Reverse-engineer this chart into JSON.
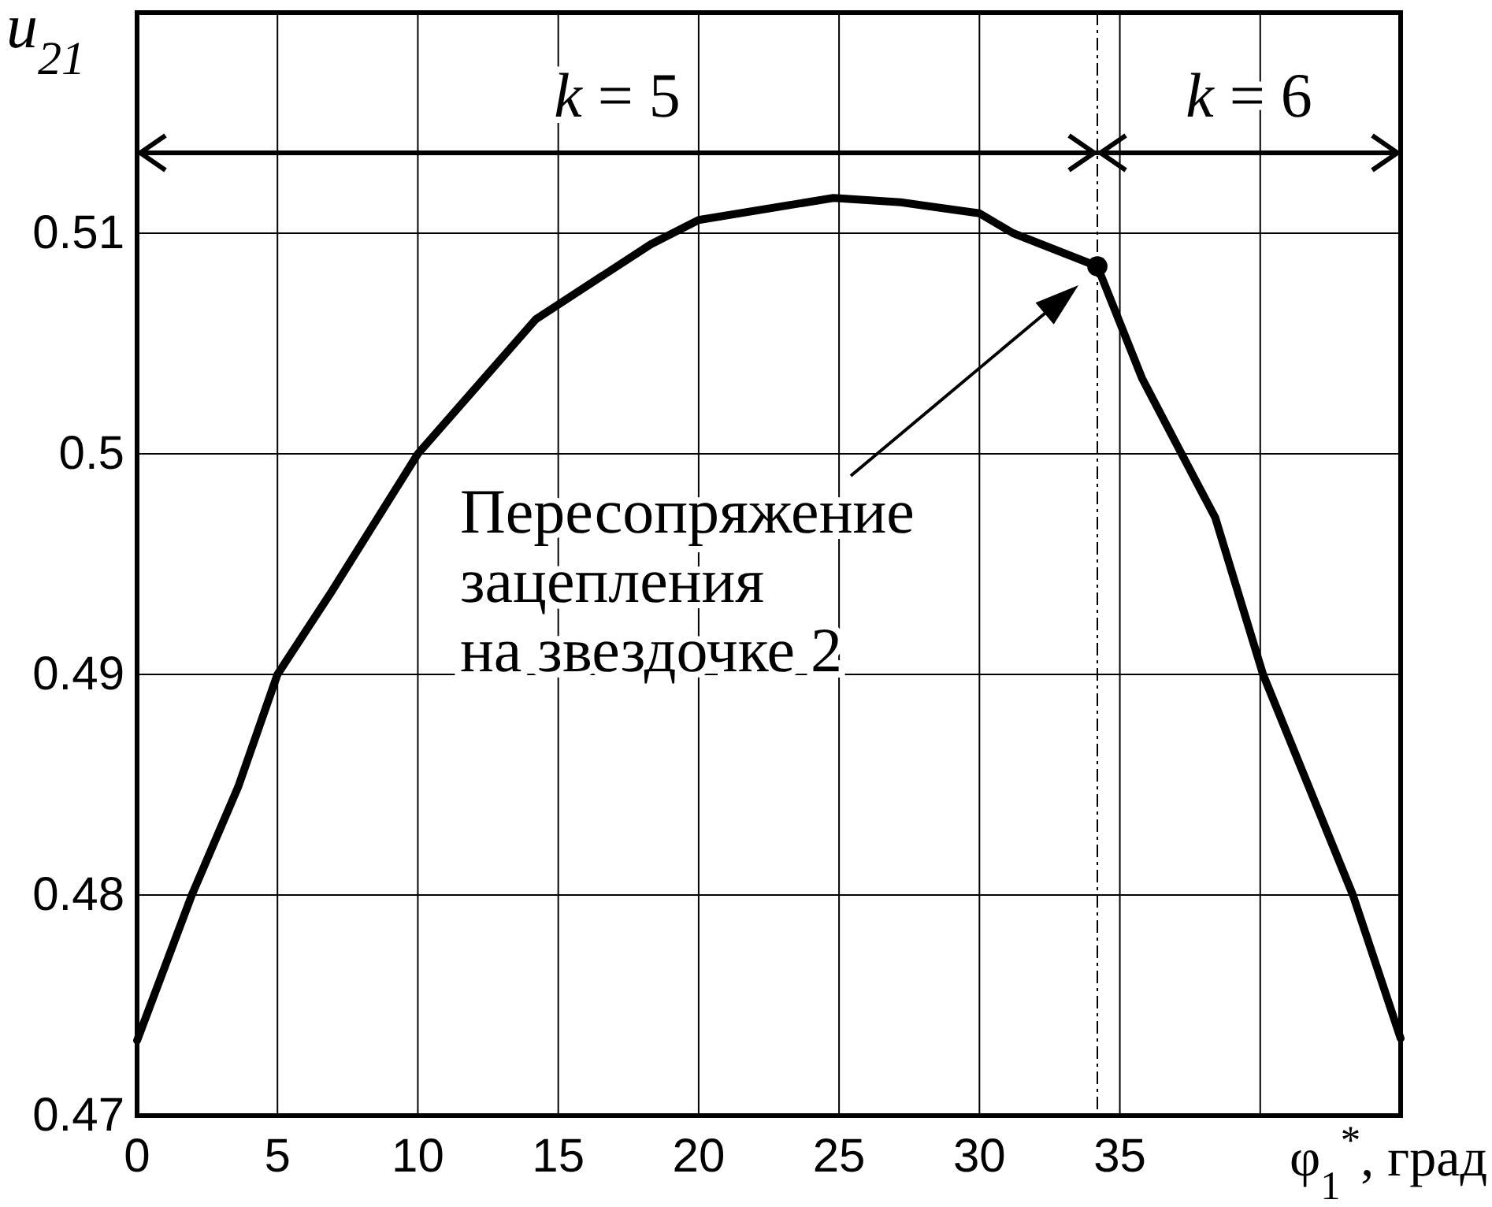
{
  "chart_data": {
    "type": "line",
    "xlabel": "φ$_{1}$$^{*}$, град",
    "ylabel": "u$_{21}$",
    "x": [
      0,
      1.95,
      3.6,
      5,
      6.9,
      10,
      14.2,
      18.3,
      20,
      24.8,
      27.2,
      30,
      31.2,
      34.2,
      35.8,
      37.2,
      38.4,
      40.1,
      43.3,
      45
    ],
    "series": [
      {
        "color": "#000000",
        "marker": "none",
        "values": [
          0.4734,
          0.48,
          0.4849,
          0.49,
          0.4937,
          0.5,
          0.5061,
          0.5095,
          0.5106,
          0.5116,
          0.5114,
          0.5109,
          0.51,
          0.5085,
          0.5034,
          0.5,
          0.4971,
          0.49,
          0.48,
          0.4735
        ]
      },
      {
        "type": "scatter",
        "color": "#000000",
        "marker": "circle",
        "x": [
          34.2
        ],
        "values": [
          0.5085
        ]
      }
    ],
    "xlim": [
      0,
      45
    ],
    "ylim": [
      0.47,
      0.52
    ],
    "xticks": [
      0,
      5,
      10,
      15,
      20,
      25,
      30,
      35,
      {
        "value": 40,
        "label": null
      },
      {
        "value": 45,
        "label": null
      }
    ],
    "yticks": [
      0.47,
      0.48,
      0.49,
      0.5,
      0.51,
      {
        "value": 0.52,
        "label": null
      }
    ],
    "grid": true,
    "ref_lines": [
      {
        "axis": "x",
        "value": 34.2,
        "line_style": "dashdot"
      }
    ],
    "annotations": [
      "k = 5",
      "k = 6",
      "Пересопряжение\nзацепления\nна звездочке 2"
    ]
  }
}
